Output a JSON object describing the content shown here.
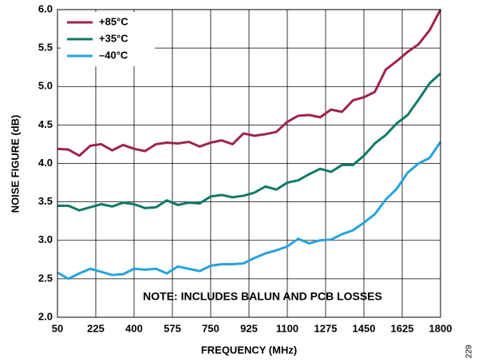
{
  "chart_data": {
    "type": "line",
    "xlabel": "FREQUENCY (MHz)",
    "ylabel": "NOISE FIGURE (dB)",
    "annotation": "NOTE: INCLUDES BALUN AND PCB LOSSES",
    "figure_id": "229",
    "x": [
      50,
      100,
      150,
      200,
      250,
      300,
      350,
      400,
      450,
      500,
      550,
      600,
      650,
      700,
      750,
      800,
      850,
      900,
      950,
      1000,
      1050,
      1100,
      1150,
      1200,
      1250,
      1300,
      1350,
      1400,
      1450,
      1500,
      1550,
      1600,
      1650,
      1700,
      1750,
      1800
    ],
    "series": [
      {
        "name": "+85°C",
        "color": "#9e2350",
        "values": [
          4.19,
          4.18,
          4.1,
          4.23,
          4.25,
          4.17,
          4.24,
          4.19,
          4.16,
          4.25,
          4.27,
          4.26,
          4.28,
          4.22,
          4.27,
          4.3,
          4.25,
          4.39,
          4.36,
          4.38,
          4.41,
          4.54,
          4.62,
          4.63,
          4.6,
          4.7,
          4.67,
          4.82,
          4.86,
          4.93,
          5.22,
          5.33,
          5.45,
          5.55,
          5.73,
          6.0
        ]
      },
      {
        "name": "+35°C",
        "color": "#10796a",
        "values": [
          3.45,
          3.45,
          3.39,
          3.43,
          3.47,
          3.44,
          3.49,
          3.47,
          3.42,
          3.43,
          3.52,
          3.46,
          3.49,
          3.48,
          3.57,
          3.59,
          3.56,
          3.58,
          3.62,
          3.7,
          3.66,
          3.75,
          3.78,
          3.86,
          3.93,
          3.89,
          3.98,
          3.98,
          4.1,
          4.26,
          4.37,
          4.52,
          4.63,
          4.83,
          5.04,
          5.17
        ]
      },
      {
        "name": "–40°C",
        "color": "#27a3dc",
        "values": [
          2.58,
          2.5,
          2.57,
          2.63,
          2.59,
          2.55,
          2.56,
          2.63,
          2.62,
          2.63,
          2.57,
          2.66,
          2.63,
          2.6,
          2.67,
          2.69,
          2.69,
          2.7,
          2.77,
          2.83,
          2.87,
          2.92,
          3.02,
          2.96,
          3.0,
          3.01,
          3.08,
          3.13,
          3.23,
          3.34,
          3.53,
          3.67,
          3.88,
          4.0,
          4.07,
          4.28
        ]
      }
    ],
    "xlim": [
      50,
      1800
    ],
    "xticks": [
      50,
      225,
      400,
      575,
      750,
      925,
      1100,
      1275,
      1450,
      1625,
      1800
    ],
    "ylim": [
      2,
      6
    ],
    "yticks": [
      {
        "value": 2,
        "label": "2.0"
      },
      2.5,
      {
        "value": 3,
        "label": "3.0"
      },
      3.5,
      {
        "value": 4,
        "label": "4.0"
      },
      4.5,
      {
        "value": 5,
        "label": "5.0"
      },
      5.5,
      {
        "value": 6,
        "label": "6.0"
      }
    ],
    "grid": true,
    "legend": "upper left"
  }
}
